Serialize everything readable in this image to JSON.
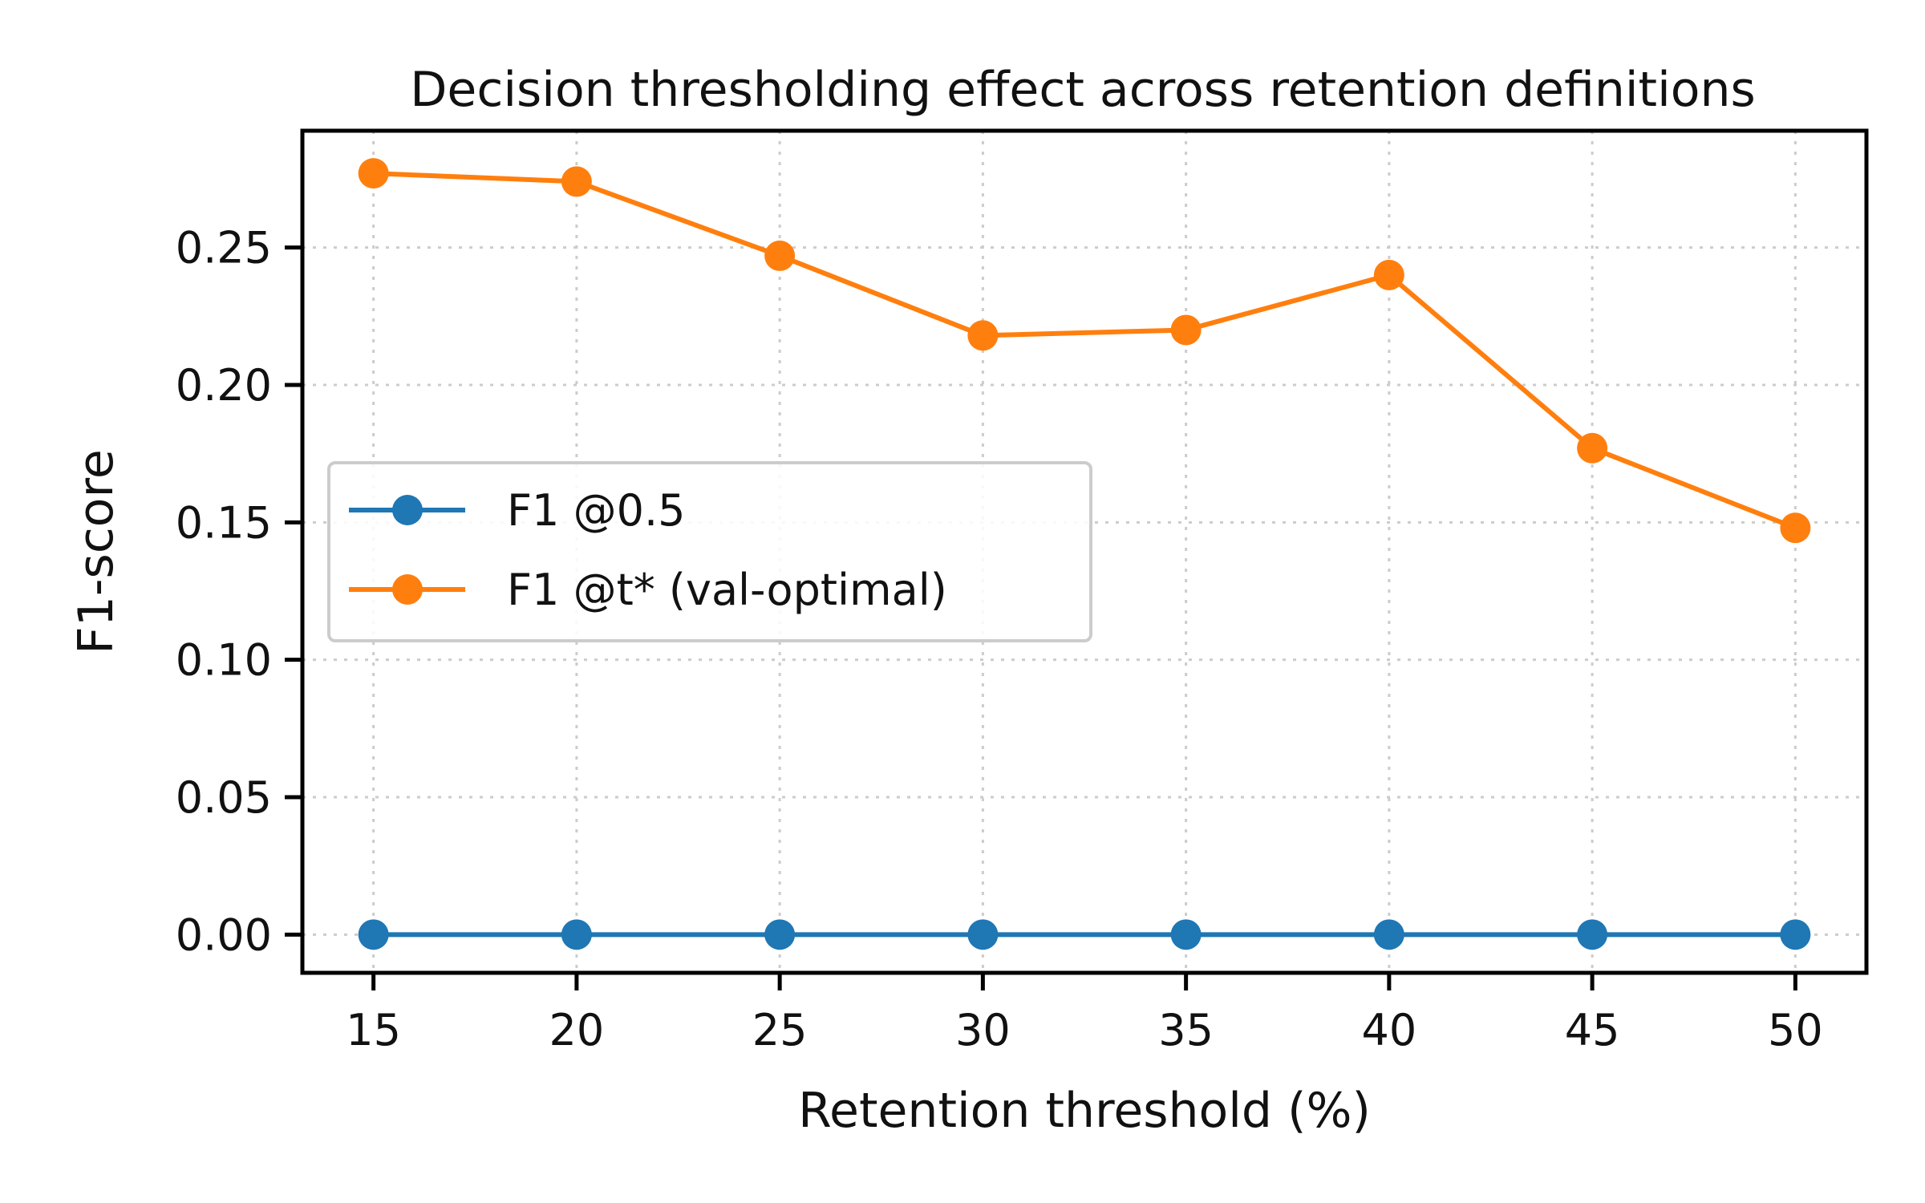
{
  "chart_data": {
    "type": "line",
    "title": "Decision thresholding effect across retention definitions",
    "xlabel": "Retention threshold (%)",
    "ylabel": "F1-score",
    "x": [
      15,
      20,
      25,
      30,
      35,
      40,
      45,
      50
    ],
    "xticks": [
      "15",
      "20",
      "25",
      "30",
      "35",
      "40",
      "45",
      "50"
    ],
    "yticks": [
      "0.00",
      "0.05",
      "0.10",
      "0.15",
      "0.20",
      "0.25"
    ],
    "xlim": [
      13.25,
      51.75
    ],
    "ylim": [
      -0.0139,
      0.2925
    ],
    "grid": true,
    "legend_position": "center-left",
    "series": [
      {
        "name": "F1 @0.5",
        "color": "#1f77b4",
        "values": [
          0.0,
          0.0,
          0.0,
          0.0,
          0.0,
          0.0,
          0.0,
          0.0
        ]
      },
      {
        "name": "F1 @t* (val-optimal)",
        "color": "#ff7f0e",
        "values": [
          0.277,
          0.274,
          0.247,
          0.218,
          0.22,
          0.24,
          0.177,
          0.148
        ]
      }
    ]
  }
}
